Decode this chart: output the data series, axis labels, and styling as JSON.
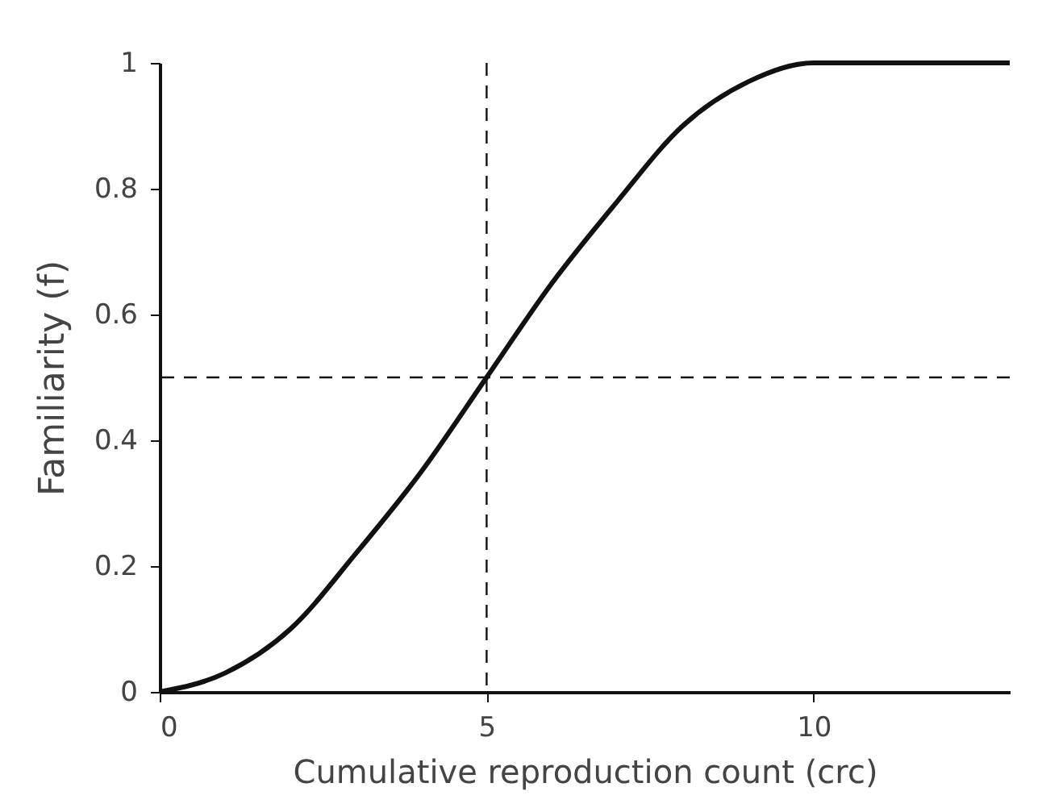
{
  "chart_data": {
    "type": "line",
    "xlabel": "Cumulative reproduction count (crc)",
    "ylabel": "Familiarity (f)",
    "x": [
      0,
      1,
      2,
      3,
      4,
      5,
      6,
      7,
      8,
      9,
      10,
      13
    ],
    "series": [
      {
        "color": "#111111",
        "values": [
          0,
          0.03,
          0.1,
          0.22,
          0.35,
          0.5,
          0.65,
          0.78,
          0.9,
          0.97,
          1,
          1
        ]
      }
    ],
    "xlim": [
      0,
      13
    ],
    "xticks": [
      0,
      5,
      10
    ],
    "ylim": [
      0,
      1
    ],
    "yticks": [
      0,
      0.2,
      0.4,
      0.6,
      0.8,
      1
    ],
    "ref_lines": [
      {
        "axis": "x",
        "value": 5,
        "label": null,
        "line_style": "dashed",
        "color": "#111111"
      },
      {
        "axis": "y",
        "value": 0.5,
        "label": null,
        "line_style": "dashed",
        "color": "#111111"
      }
    ],
    "grid": false,
    "marker": "none",
    "line_style": "solid"
  }
}
